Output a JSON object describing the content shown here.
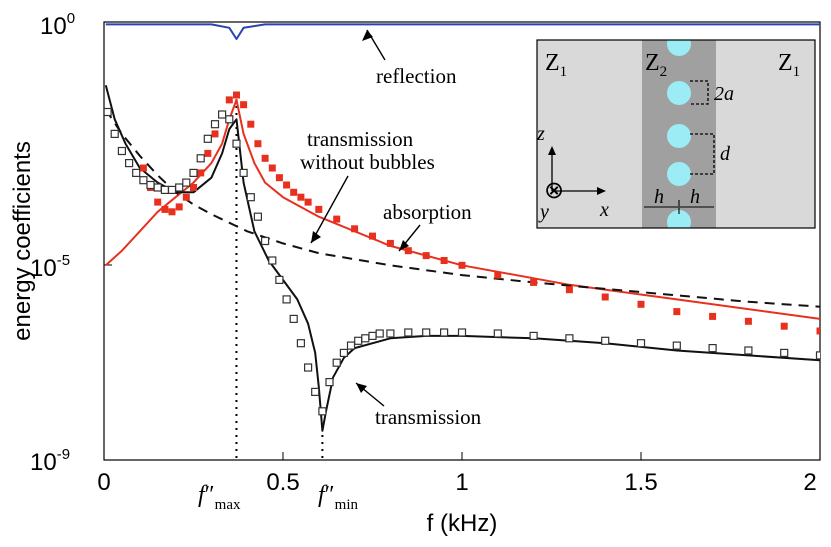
{
  "chart_data": {
    "type": "line",
    "ylabel": "energy coefficients",
    "xlabel": "f (kHz)",
    "yscale": "log",
    "xlim": [
      0,
      2
    ],
    "ylim_exponent": [
      -9,
      0
    ],
    "x_ticks": [
      "0",
      "0.5",
      "1",
      "1.5",
      "2"
    ],
    "y_ticks": [
      {
        "base": "10",
        "exp": "0"
      },
      {
        "base": "10",
        "exp": "-5"
      },
      {
        "base": "10",
        "exp": "-9"
      }
    ],
    "f_max_label": {
      "f": "f",
      "primes": "″",
      "sub": "max"
    },
    "f_min_label": {
      "f": "f",
      "primes": "″",
      "sub": "min"
    },
    "f_max_khz": 0.37,
    "f_min_khz": 0.61,
    "colors": {
      "reflection": "#2a44b0",
      "absorption": "#e8301e",
      "transmission": "#111111",
      "markers_open": "#333333"
    },
    "annotations": [
      {
        "id": "reflection",
        "text": "reflection"
      },
      {
        "id": "transmission_nb_1",
        "text": "transmission"
      },
      {
        "id": "transmission_nb_2",
        "text": "without bubbles"
      },
      {
        "id": "absorption",
        "text": "absorption"
      },
      {
        "id": "transmission",
        "text": "transmission"
      }
    ],
    "series": [
      {
        "name": "reflection",
        "style": "line",
        "color": "#2a44b0",
        "x": [
          0.005,
          0.3,
          0.35,
          0.37,
          0.39,
          0.45,
          2.0
        ],
        "logy": [
          -0.05,
          -0.05,
          -0.12,
          -0.35,
          -0.12,
          -0.05,
          -0.05
        ]
      },
      {
        "name": "absorption (model)",
        "style": "line",
        "color": "#e8301e",
        "x": [
          0.005,
          0.05,
          0.1,
          0.15,
          0.2,
          0.25,
          0.3,
          0.33,
          0.35,
          0.37,
          0.39,
          0.42,
          0.45,
          0.5,
          0.6,
          0.8,
          1.0,
          1.3,
          1.6,
          2.0
        ],
        "logy": [
          -5.0,
          -4.7,
          -4.3,
          -3.9,
          -3.6,
          -3.3,
          -2.9,
          -2.5,
          -2.0,
          -1.6,
          -2.3,
          -2.9,
          -3.3,
          -3.6,
          -4.0,
          -4.6,
          -5.0,
          -5.4,
          -5.7,
          -6.1
        ]
      },
      {
        "name": "transmission (model)",
        "style": "line",
        "color": "#111111",
        "x": [
          0.005,
          0.03,
          0.06,
          0.1,
          0.15,
          0.2,
          0.25,
          0.3,
          0.33,
          0.35,
          0.37,
          0.39,
          0.42,
          0.46,
          0.5,
          0.54,
          0.57,
          0.59,
          0.6,
          0.61,
          0.62,
          0.64,
          0.67,
          0.7,
          0.8,
          0.9,
          1.0,
          1.2,
          1.4,
          1.6,
          1.8,
          2.0
        ],
        "logy": [
          -1.3,
          -2.0,
          -2.5,
          -3.0,
          -3.3,
          -3.5,
          -3.5,
          -3.2,
          -2.7,
          -2.2,
          -2.0,
          -3.3,
          -4.3,
          -4.9,
          -5.3,
          -5.7,
          -6.2,
          -6.8,
          -7.5,
          -8.4,
          -8.0,
          -7.3,
          -6.9,
          -6.7,
          -6.5,
          -6.45,
          -6.45,
          -6.5,
          -6.6,
          -6.75,
          -6.85,
          -6.95
        ]
      },
      {
        "name": "absorption without bubbles",
        "style": "dashed",
        "color": "#111111",
        "x": [
          0.005,
          0.05,
          0.1,
          0.15,
          0.2,
          0.25,
          0.3,
          0.4,
          0.5,
          0.6,
          0.8,
          1.0,
          1.2,
          1.5,
          1.8,
          2.0
        ],
        "logy": [
          -1.8,
          -2.3,
          -2.75,
          -3.15,
          -3.5,
          -3.75,
          -3.95,
          -4.3,
          -4.55,
          -4.75,
          -5.0,
          -5.2,
          -5.35,
          -5.55,
          -5.75,
          -5.85
        ]
      },
      {
        "name": "absorption (measured)",
        "style": "filled-square",
        "color": "#e8301e",
        "x": [
          0.11,
          0.13,
          0.15,
          0.17,
          0.19,
          0.21,
          0.23,
          0.25,
          0.27,
          0.29,
          0.31,
          0.33,
          0.35,
          0.37,
          0.39,
          0.41,
          0.43,
          0.45,
          0.47,
          0.49,
          0.51,
          0.53,
          0.55,
          0.57,
          0.6,
          0.65,
          0.7,
          0.75,
          0.8,
          0.85,
          0.9,
          0.95,
          1.0,
          1.1,
          1.2,
          1.3,
          1.4,
          1.5,
          1.6,
          1.7,
          1.8,
          1.9,
          2.0
        ],
        "logy": [
          -3.0,
          -3.4,
          -3.7,
          -3.85,
          -3.9,
          -3.8,
          -3.6,
          -3.4,
          -3.1,
          -2.7,
          -2.3,
          -1.9,
          -1.6,
          -1.5,
          -1.7,
          -2.1,
          -2.5,
          -2.8,
          -3.0,
          -3.2,
          -3.35,
          -3.5,
          -3.6,
          -3.7,
          -3.85,
          -4.05,
          -4.25,
          -4.4,
          -4.55,
          -4.7,
          -4.8,
          -4.9,
          -5.0,
          -5.2,
          -5.35,
          -5.5,
          -5.65,
          -5.8,
          -5.95,
          -6.05,
          -6.15,
          -6.25,
          -6.35
        ]
      },
      {
        "name": "transmission (measured)",
        "style": "open-square",
        "color": "#333333",
        "x": [
          0.01,
          0.03,
          0.05,
          0.07,
          0.09,
          0.11,
          0.13,
          0.15,
          0.17,
          0.19,
          0.21,
          0.23,
          0.25,
          0.27,
          0.29,
          0.31,
          0.33,
          0.35,
          0.37,
          0.39,
          0.41,
          0.43,
          0.45,
          0.47,
          0.49,
          0.51,
          0.53,
          0.55,
          0.57,
          0.59,
          0.61,
          0.63,
          0.65,
          0.67,
          0.69,
          0.71,
          0.73,
          0.75,
          0.77,
          0.8,
          0.85,
          0.9,
          0.95,
          1.0,
          1.1,
          1.2,
          1.3,
          1.4,
          1.5,
          1.6,
          1.7,
          1.8,
          1.9,
          2.0
        ],
        "logy": [
          -1.85,
          -2.3,
          -2.65,
          -2.9,
          -3.1,
          -3.25,
          -3.35,
          -3.4,
          -3.45,
          -3.45,
          -3.4,
          -3.3,
          -3.1,
          -2.8,
          -2.4,
          -2.1,
          -1.9,
          -2.0,
          -2.5,
          -3.1,
          -3.6,
          -4.0,
          -4.5,
          -4.9,
          -5.3,
          -5.7,
          -6.1,
          -6.6,
          -7.1,
          -7.6,
          -8.0,
          -7.4,
          -7.0,
          -6.8,
          -6.65,
          -6.55,
          -6.5,
          -6.45,
          -6.4,
          -6.4,
          -6.38,
          -6.38,
          -6.38,
          -6.38,
          -6.4,
          -6.45,
          -6.5,
          -6.55,
          -6.6,
          -6.65,
          -6.7,
          -6.75,
          -6.8,
          -6.85
        ]
      }
    ],
    "inset": {
      "region_left": {
        "base": "Z",
        "sub": "1"
      },
      "region_mid": {
        "base": "Z",
        "sub": "2"
      },
      "region_right": {
        "base": "Z",
        "sub": "1"
      },
      "label_2a": "2a",
      "label_d": "d",
      "label_h": "h",
      "axis_z": "z",
      "axis_x": "x",
      "axis_y": "y",
      "otimes": "⊗",
      "color_outer": "#d9d9d9",
      "color_layer": "#a0a0a0",
      "color_bubble": "#9cecf6"
    }
  }
}
